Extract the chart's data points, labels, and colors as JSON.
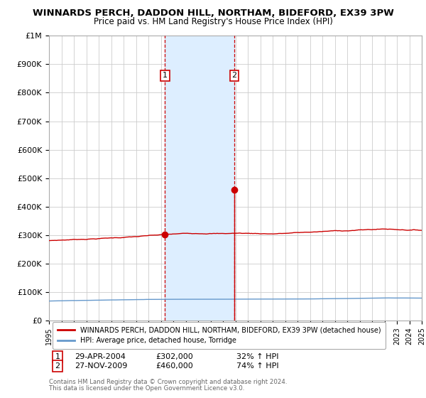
{
  "title": "WINNARDS PERCH, DADDON HILL, NORTHAM, BIDEFORD, EX39 3PW",
  "subtitle": "Price paid vs. HM Land Registry's House Price Index (HPI)",
  "x_start_year": 1995,
  "x_end_year": 2025,
  "y_min": 0,
  "y_max": 1000000,
  "y_ticks": [
    0,
    100000,
    200000,
    300000,
    400000,
    500000,
    600000,
    700000,
    800000,
    900000,
    1000000
  ],
  "y_tick_labels": [
    "£0",
    "£100K",
    "£200K",
    "£300K",
    "£400K",
    "£500K",
    "£600K",
    "£700K",
    "£800K",
    "£900K",
    "£1M"
  ],
  "red_color": "#cc0000",
  "blue_color": "#6699cc",
  "shade_color": "#ddeeff",
  "grid_color": "#cccccc",
  "sale1_x": 2004.33,
  "sale1_price": 302000,
  "sale2_x": 2009.92,
  "sale2_price": 460000,
  "legend_red": "WINNARDS PERCH, DADDON HILL, NORTHAM, BIDEFORD, EX39 3PW (detached house)",
  "legend_blue": "HPI: Average price, detached house, Torridge",
  "table_1_date": "29-APR-2004",
  "table_1_price": "£302,000",
  "table_1_pct": "32% ↑ HPI",
  "table_2_date": "27-NOV-2009",
  "table_2_price": "£460,000",
  "table_2_pct": "74% ↑ HPI",
  "footer1": "Contains HM Land Registry data © Crown copyright and database right 2024.",
  "footer2": "This data is licensed under the Open Government Licence v3.0."
}
